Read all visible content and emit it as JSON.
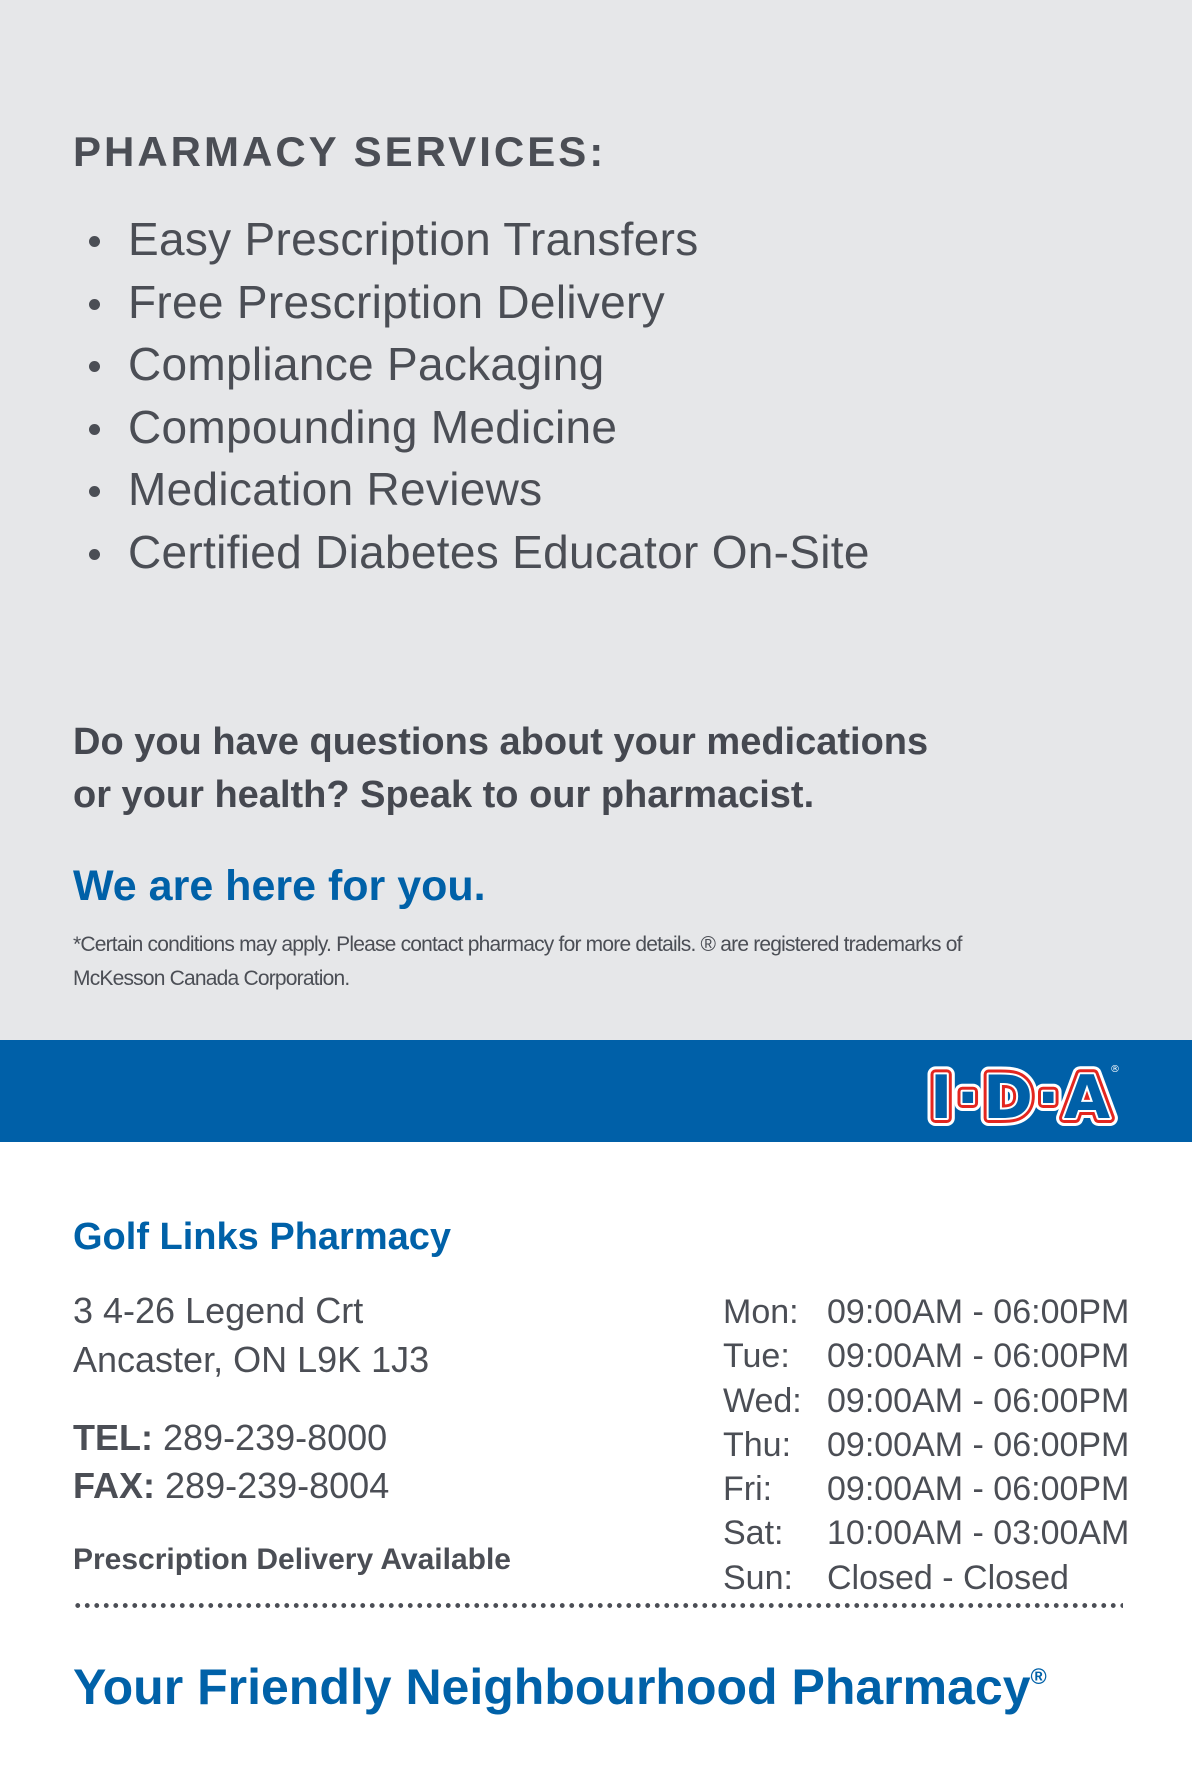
{
  "services": {
    "heading": "PHARMACY SERVICES:",
    "items": [
      "Easy Prescription Transfers",
      "Free Prescription Delivery",
      "Compliance Packaging",
      "Compounding Medicine",
      "Medication Reviews",
      "Certified Diabetes Educator On-Site"
    ]
  },
  "questions": {
    "line1": "Do you have questions about your medications",
    "line2": "or your health? Speak to our pharmacist."
  },
  "here": "We are here for you.",
  "fine_print": {
    "line1": "*Certain conditions may apply. Please contact pharmacy for more details. ® are registered trademarks of",
    "line2": "McKesson Canada Corporation."
  },
  "logo": {
    "text": "I·D·A",
    "colors": {
      "band": "#0060a8",
      "outline": "#e3261f",
      "fill": "#ffffff"
    }
  },
  "pharmacy": {
    "name": "Golf Links Pharmacy",
    "address1": "3 4-26 Legend Crt",
    "address2": "Ancaster, ON L9K 1J3",
    "tel_label": "TEL:",
    "tel": "289-239-8000",
    "fax_label": "FAX:",
    "fax": "289-239-8004",
    "delivery": "Prescription Delivery Available"
  },
  "hours": [
    {
      "day": "Mon:",
      "time": "09:00AM - 06:00PM"
    },
    {
      "day": "Tue:",
      "time": "09:00AM - 06:00PM"
    },
    {
      "day": "Wed:",
      "time": "09:00AM - 06:00PM"
    },
    {
      "day": "Thu:",
      "time": "09:00AM - 06:00PM"
    },
    {
      "day": "Fri:",
      "time": "09:00AM - 06:00PM"
    },
    {
      "day": "Sat:",
      "time": "10:00AM - 03:00AM"
    },
    {
      "day": "Sun:",
      "time": "Closed - Closed"
    }
  ],
  "tagline": {
    "text": "Your Friendly Neighbourhood Pharmacy",
    "mark": "®"
  }
}
